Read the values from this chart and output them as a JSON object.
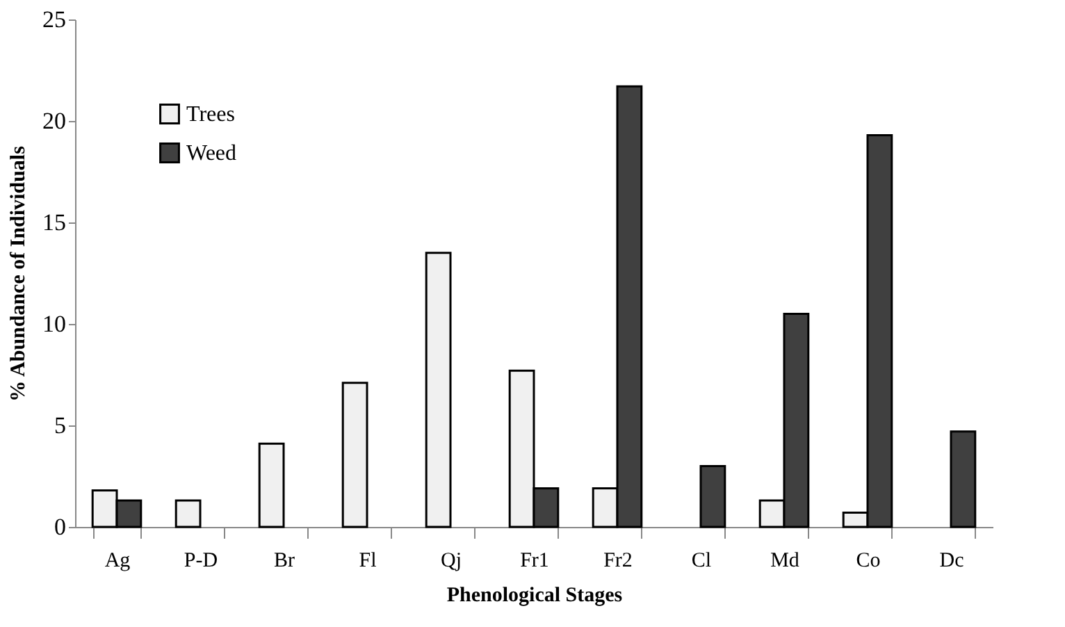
{
  "chart_data": {
    "type": "bar",
    "xlabel": "Phenological Stages",
    "ylabel": "%  Abundance of Individuals",
    "categories": [
      "Ag",
      "P-D",
      "Br",
      "Fl",
      "Qj",
      "Fr1",
      "Fr2",
      "Cl",
      "Md",
      "Co",
      "Dc"
    ],
    "series": [
      {
        "name": "Trees",
        "color": "#f0f0f0",
        "values": [
          1.8,
          1.3,
          4.1,
          7.1,
          13.5,
          7.7,
          1.9,
          0,
          1.3,
          0.7,
          0
        ]
      },
      {
        "name": "Weed",
        "color": "#404040",
        "values": [
          1.3,
          0,
          0,
          0,
          0,
          1.9,
          21.7,
          3.0,
          10.5,
          19.3,
          4.7
        ]
      }
    ],
    "ylim": [
      0,
      25
    ],
    "yticks": [
      0,
      5,
      10,
      15,
      20,
      25
    ],
    "grid": false,
    "legend": "top left"
  }
}
